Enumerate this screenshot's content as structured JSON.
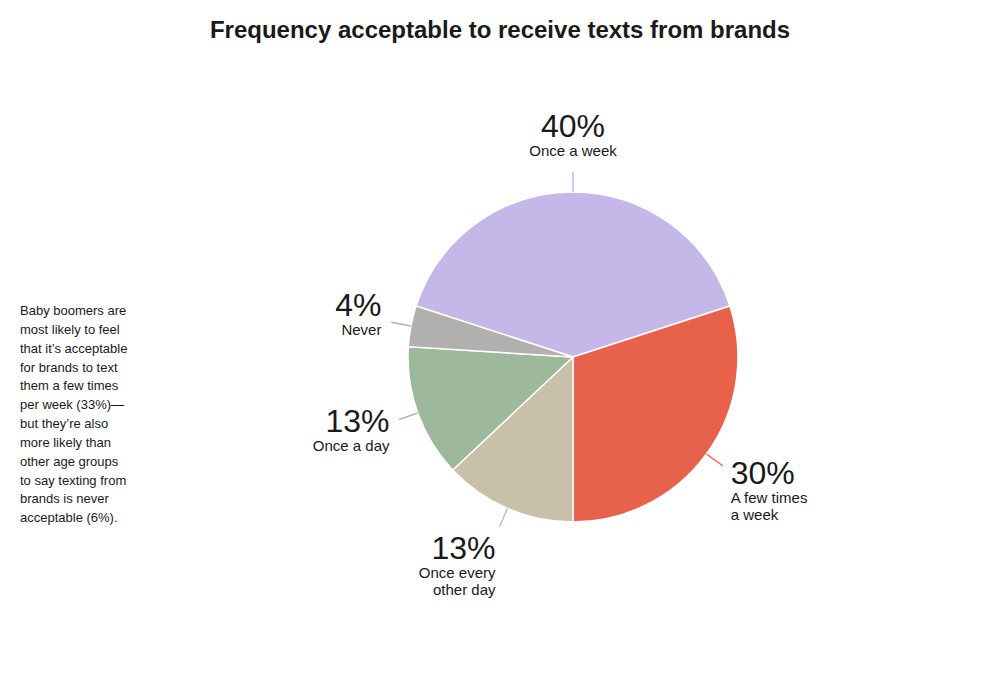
{
  "chart_data": {
    "type": "pie",
    "title": "Frequency acceptable to receive texts from brands",
    "categories": [
      "Once a week",
      "A few times\na week",
      "Once every\nother day",
      "Once a day",
      "Never"
    ],
    "values": [
      40,
      30,
      13,
      13,
      4
    ],
    "value_labels": [
      "40%",
      "30%",
      "13%",
      "13%",
      "4%"
    ],
    "colors": [
      "#c5b8e8",
      "#e8614a",
      "#c9c0aa",
      "#9db89a",
      "#b2afaf"
    ],
    "data_labels": true,
    "annotation": "Baby boomers are\nmost likely to feel\nthat it’s acceptable\nfor brands to text\nthem a few times\nper week (33%)—\nbut they’re also\nmore likely than\nother age groups\nto say texting from\nbrands is never\nacceptable (6%)."
  }
}
